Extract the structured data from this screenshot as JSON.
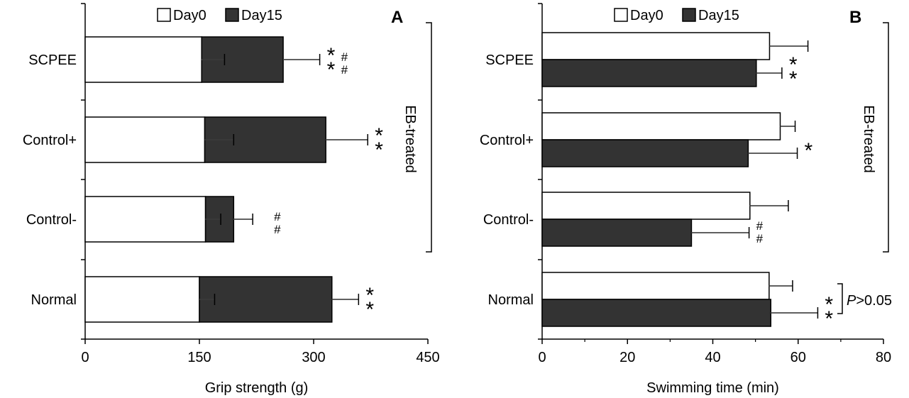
{
  "legend": {
    "day0_label": "Day0",
    "day15_label": "Day15"
  },
  "bracket_label": "EB-treated",
  "colors": {
    "day0_fill": "#ffffff",
    "day15_fill": "#333333",
    "stroke": "#000000"
  },
  "chart_data": [
    {
      "type": "bar",
      "orientation": "horizontal",
      "panel_label": "A",
      "xlabel": "Grip strength (g)",
      "xlim": [
        0,
        450
      ],
      "xticks": [
        0,
        150,
        300,
        450
      ],
      "categories": [
        "SCPEE",
        "Control+",
        "Control-",
        "Normal"
      ],
      "layout": "stacked",
      "series": [
        {
          "name": "Day0",
          "values": [
            153,
            157,
            158,
            150
          ],
          "errors": [
            30,
            38,
            20,
            20
          ]
        },
        {
          "name": "Day15",
          "values": [
            260,
            316,
            195,
            324
          ],
          "errors": [
            48,
            55,
            25,
            35
          ]
        }
      ],
      "annotations": [
        {
          "category": "SCPEE",
          "text": "**##"
        },
        {
          "category": "Control+",
          "text": "**"
        },
        {
          "category": "Control-",
          "text": "##"
        },
        {
          "category": "Normal",
          "text": "**"
        }
      ],
      "legend_position": "top"
    },
    {
      "type": "bar",
      "orientation": "horizontal",
      "panel_label": "B",
      "xlabel": "Swimming time (min)",
      "xlim": [
        0,
        80
      ],
      "xticks": [
        0,
        20,
        40,
        60,
        80
      ],
      "categories": [
        "SCPEE",
        "Control+",
        "Control-",
        "Normal"
      ],
      "layout": "grouped",
      "series": [
        {
          "name": "Day0",
          "values": [
            53.3,
            55.8,
            48.7,
            53.2
          ],
          "errors": [
            9,
            3.5,
            9,
            5.5
          ]
        },
        {
          "name": "Day15",
          "values": [
            50.2,
            48.3,
            35,
            53.6
          ],
          "errors": [
            6,
            11.5,
            13.5,
            11
          ]
        }
      ],
      "annotations": [
        {
          "category": "SCPEE",
          "text": "**"
        },
        {
          "category": "Control+",
          "text": "*"
        },
        {
          "category": "Control-",
          "text": "##"
        },
        {
          "category": "Normal",
          "text": "**"
        }
      ],
      "pvalue_note": {
        "category": "Normal",
        "italic": "P",
        "rest": ">0.05"
      },
      "legend_position": "top"
    }
  ]
}
